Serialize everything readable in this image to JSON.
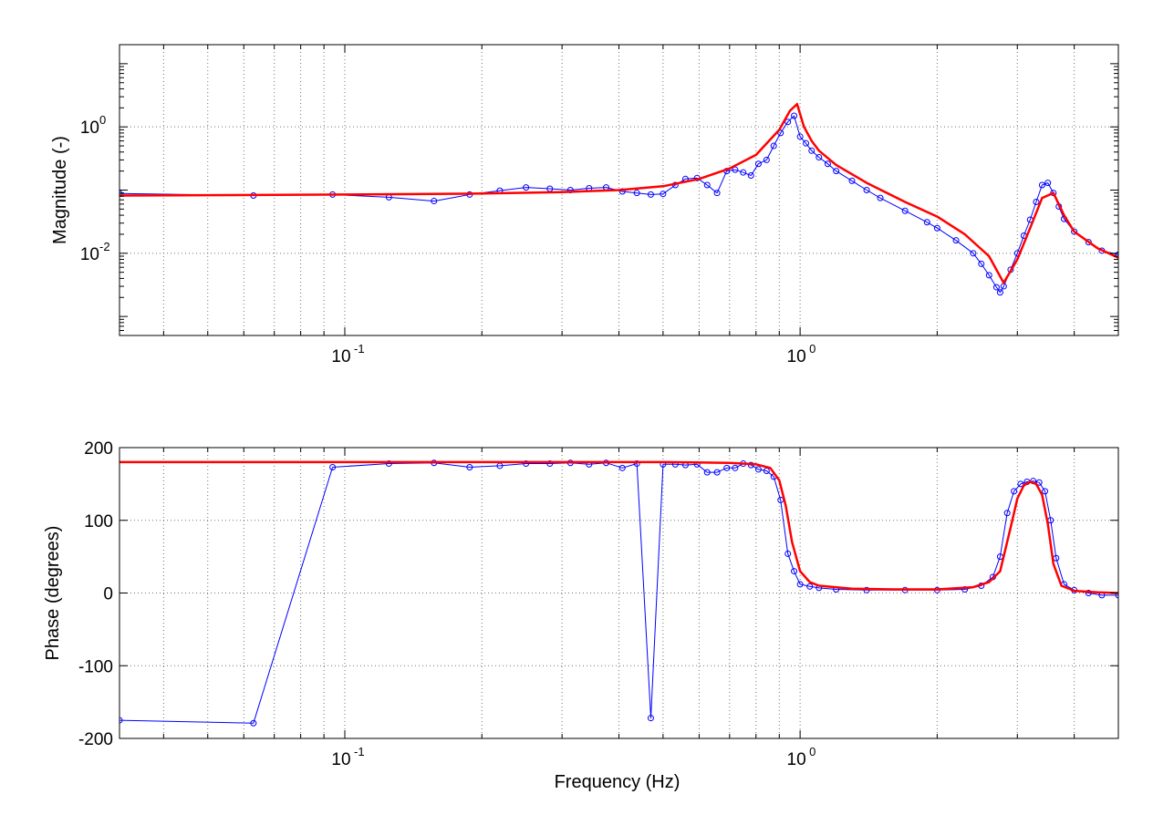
{
  "chart_data": [
    {
      "type": "line",
      "xscale": "log",
      "yscale": "log",
      "xlim": [
        0.032,
        5.0
      ],
      "ylim": [
        0.0005,
        20
      ],
      "xticks": [
        {
          "value": 0.1,
          "label": "10",
          "exp": "-1"
        },
        {
          "value": 1.0,
          "label": "10",
          "exp": "0"
        }
      ],
      "yticks": [
        {
          "value": 0.01,
          "label": "10",
          "exp": "-2"
        },
        {
          "value": 1.0,
          "label": "10",
          "exp": "0"
        }
      ],
      "xlabel": "",
      "ylabel": "Magnitude (-)",
      "grid": true,
      "series": [
        {
          "name": "",
          "color": "#0000ff",
          "marker": "circle",
          "x": [
            0.032,
            0.063,
            0.094,
            0.125,
            0.157,
            0.188,
            0.219,
            0.25,
            0.282,
            0.313,
            0.344,
            0.375,
            0.407,
            0.438,
            0.47,
            0.5,
            0.532,
            0.56,
            0.594,
            0.625,
            0.657,
            0.69,
            0.72,
            0.75,
            0.78,
            0.81,
            0.844,
            0.875,
            0.906,
            0.94,
            0.97,
            1.0,
            1.03,
            1.06,
            1.1,
            1.15,
            1.2,
            1.3,
            1.4,
            1.5,
            1.7,
            1.9,
            2.0,
            2.2,
            2.4,
            2.5,
            2.6,
            2.7,
            2.75,
            2.8,
            2.9,
            3.0,
            3.1,
            3.2,
            3.3,
            3.4,
            3.5,
            3.6,
            3.7,
            3.8,
            4.0,
            4.3,
            4.6,
            5.0
          ],
          "y": [
            0.088,
            0.082,
            0.085,
            0.077,
            0.067,
            0.085,
            0.098,
            0.11,
            0.105,
            0.1,
            0.107,
            0.11,
            0.095,
            0.09,
            0.085,
            0.087,
            0.12,
            0.15,
            0.155,
            0.12,
            0.09,
            0.2,
            0.21,
            0.19,
            0.17,
            0.26,
            0.3,
            0.5,
            0.8,
            1.2,
            1.5,
            0.7,
            0.55,
            0.42,
            0.33,
            0.26,
            0.2,
            0.14,
            0.1,
            0.075,
            0.047,
            0.031,
            0.025,
            0.016,
            0.01,
            0.0068,
            0.0045,
            0.0029,
            0.0024,
            0.003,
            0.0055,
            0.01,
            0.019,
            0.034,
            0.065,
            0.12,
            0.13,
            0.09,
            0.055,
            0.035,
            0.022,
            0.015,
            0.011,
            0.0095
          ]
        },
        {
          "name": "",
          "color": "#ff0000",
          "marker": "none",
          "x": [
            0.032,
            0.1,
            0.2,
            0.3,
            0.4,
            0.5,
            0.6,
            0.7,
            0.8,
            0.9,
            0.95,
            0.985,
            1.02,
            1.06,
            1.1,
            1.2,
            1.4,
            1.7,
            2.0,
            2.3,
            2.6,
            2.8,
            3.0,
            3.2,
            3.4,
            3.6,
            3.8,
            4.0,
            4.5,
            5.0
          ],
          "y": [
            0.082,
            0.085,
            0.088,
            0.093,
            0.1,
            0.115,
            0.15,
            0.22,
            0.36,
            0.9,
            1.8,
            2.3,
            1.0,
            0.6,
            0.42,
            0.25,
            0.13,
            0.065,
            0.038,
            0.02,
            0.009,
            0.0034,
            0.008,
            0.025,
            0.075,
            0.09,
            0.04,
            0.022,
            0.012,
            0.0085
          ]
        }
      ]
    },
    {
      "type": "line",
      "xscale": "log",
      "yscale": "linear",
      "xlim": [
        0.032,
        5.0
      ],
      "ylim": [
        -200,
        200
      ],
      "xticks": [
        {
          "value": 0.1,
          "label": "10",
          "exp": "-1"
        },
        {
          "value": 1.0,
          "label": "10",
          "exp": "0"
        }
      ],
      "yticks": [
        {
          "value": 200,
          "label": "200"
        },
        {
          "value": 100,
          "label": "100"
        },
        {
          "value": 0,
          "label": "0"
        },
        {
          "value": -100,
          "label": "-100"
        },
        {
          "value": -200,
          "label": "-200"
        }
      ],
      "xlabel": "Frequency (Hz)",
      "ylabel": "Phase (degrees)",
      "grid": true,
      "series": [
        {
          "name": "",
          "color": "#0000ff",
          "marker": "circle",
          "x": [
            0.032,
            0.063,
            0.094,
            0.125,
            0.157,
            0.188,
            0.219,
            0.25,
            0.282,
            0.313,
            0.344,
            0.375,
            0.407,
            0.438,
            0.47,
            0.5,
            0.532,
            0.56,
            0.594,
            0.625,
            0.657,
            0.69,
            0.72,
            0.75,
            0.78,
            0.81,
            0.844,
            0.875,
            0.906,
            0.94,
            0.97,
            1.0,
            1.05,
            1.1,
            1.2,
            1.4,
            1.7,
            2.0,
            2.3,
            2.5,
            2.65,
            2.75,
            2.85,
            2.95,
            3.05,
            3.15,
            3.25,
            3.35,
            3.45,
            3.55,
            3.65,
            3.8,
            4.0,
            4.3,
            4.6,
            5.0
          ],
          "y": [
            -175,
            -179,
            173,
            178,
            179,
            173,
            175,
            178,
            178,
            179,
            177,
            179,
            172,
            178,
            -172,
            177,
            177,
            176,
            177,
            166,
            166,
            172,
            172,
            178,
            176,
            170,
            168,
            160,
            128,
            54,
            30,
            12,
            9,
            7,
            5,
            4,
            4,
            4,
            5,
            10,
            22,
            50,
            110,
            140,
            150,
            153,
            154,
            152,
            140,
            100,
            48,
            12,
            4,
            0,
            -3,
            -3
          ]
        },
        {
          "name": "",
          "color": "#ff0000",
          "marker": "none",
          "x": [
            0.032,
            0.1,
            0.3,
            0.5,
            0.7,
            0.8,
            0.86,
            0.9,
            0.93,
            0.96,
            1.0,
            1.05,
            1.1,
            1.3,
            1.6,
            2.0,
            2.4,
            2.6,
            2.75,
            2.9,
            3.0,
            3.1,
            3.2,
            3.3,
            3.4,
            3.5,
            3.6,
            3.75,
            4.0,
            4.5,
            5.0
          ],
          "y": [
            180,
            180,
            180,
            180,
            179,
            177,
            172,
            155,
            120,
            70,
            30,
            15,
            10,
            6,
            5,
            5,
            8,
            15,
            30,
            90,
            130,
            148,
            153,
            150,
            135,
            95,
            40,
            10,
            3,
            1,
            0
          ]
        }
      ]
    }
  ]
}
